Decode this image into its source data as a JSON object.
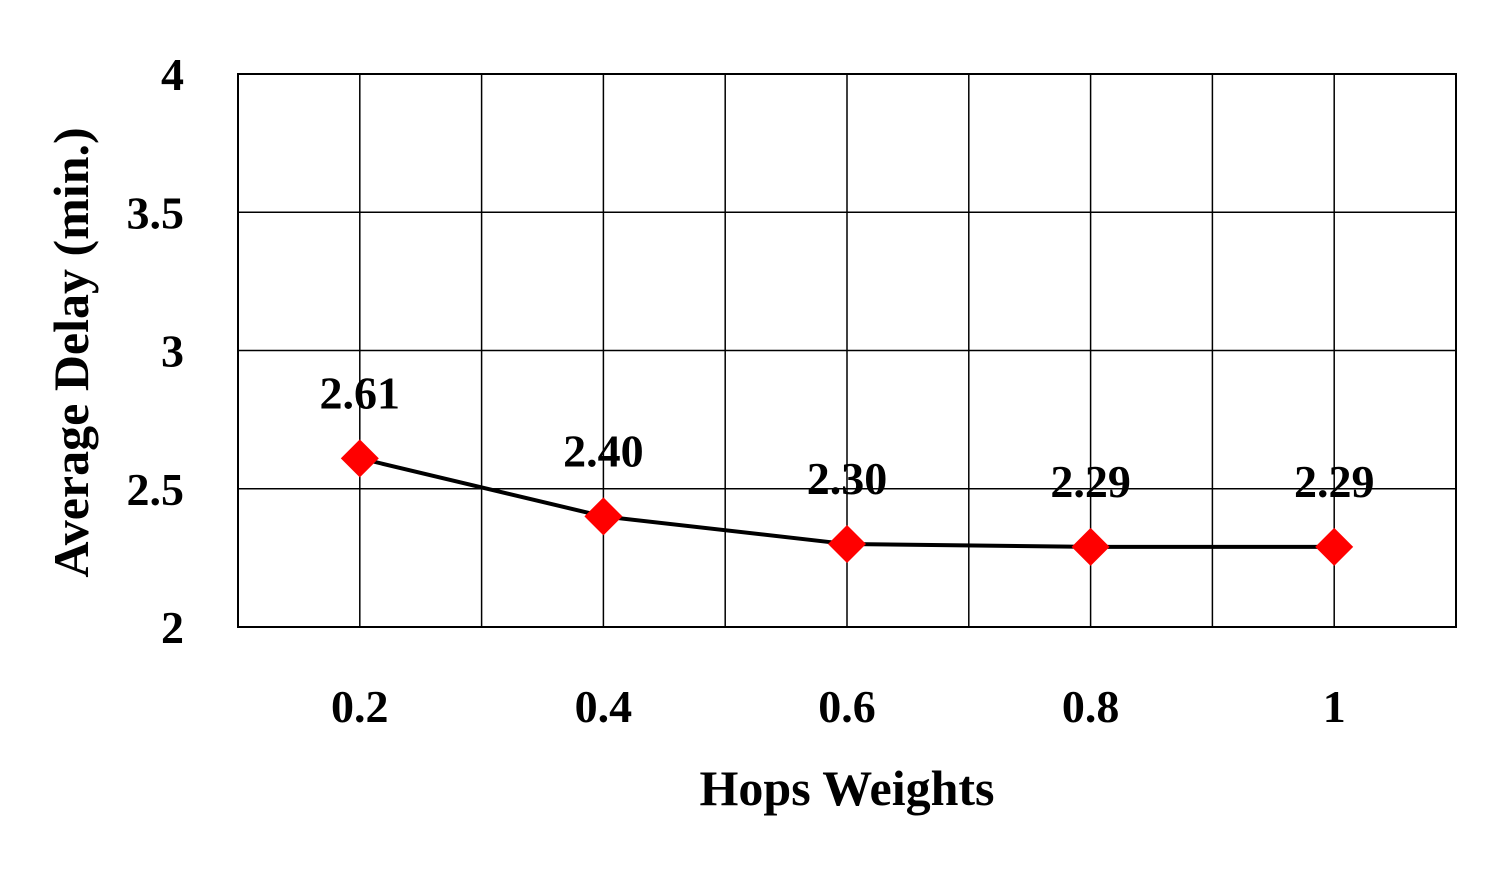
{
  "chart_data": {
    "type": "line",
    "title": "",
    "xlabel": "Hops Weights",
    "ylabel": "Average Delay (min.)",
    "categories": [
      "0.2",
      "0.4",
      "0.6",
      "0.8",
      "1"
    ],
    "series": [
      {
        "values": [
          2.61,
          2.4,
          2.3,
          2.29,
          2.29
        ],
        "data_labels": [
          "2.61",
          "2.40",
          "2.30",
          "2.29",
          "2.29"
        ],
        "line_color": "#000000",
        "marker": "diamond",
        "marker_color": "#ff0000"
      }
    ],
    "yticks": [
      "2",
      "2.5",
      "3",
      "3.5",
      "4"
    ],
    "ylim": [
      2,
      4
    ],
    "grid": true,
    "legend": "none"
  }
}
